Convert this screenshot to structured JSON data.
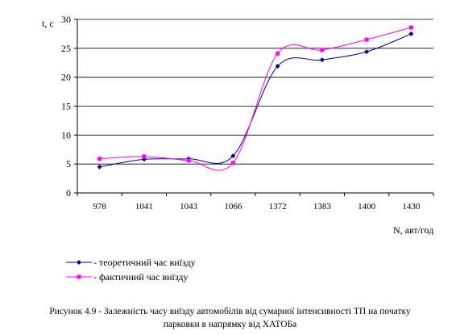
{
  "chart_data": {
    "type": "line",
    "ylabel": "t, c",
    "xlabel": "N, авт/год",
    "categories": [
      "978",
      "1041",
      "1043",
      "1066",
      "1372",
      "1383",
      "1400",
      "1430"
    ],
    "ylim": [
      0,
      30
    ],
    "yticks": [
      "0",
      "5",
      "10",
      "15",
      "20",
      "25",
      "30"
    ],
    "grid": true,
    "legend_position": "bottom-left",
    "series": [
      {
        "name": "- теоретичний час виїзду",
        "color": "#000080",
        "marker": "diamond",
        "values": [
          4.5,
          5.8,
          5.9,
          6.4,
          21.9,
          23.0,
          24.4,
          27.5
        ]
      },
      {
        "name": "- фактичний час виїзду",
        "color": "#ff00ff",
        "marker": "square",
        "values": [
          5.9,
          6.3,
          5.6,
          5.2,
          24.1,
          24.7,
          26.5,
          28.6
        ]
      }
    ]
  },
  "caption": {
    "line1": "Рисунок 4.9 - Залежність часу виїзду автомобілів від сумарної  інтенсивності ТП на початку",
    "line2": "парковки в напрямку від ХАТОБа"
  }
}
